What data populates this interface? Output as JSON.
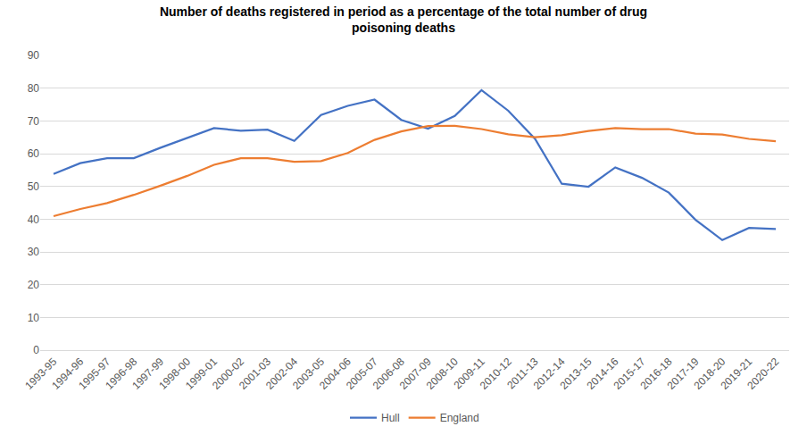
{
  "chart_data": {
    "type": "line",
    "title": "Number of deaths registered in period as a percentage of the total number of drug poisoning deaths",
    "categories": [
      "1993-95",
      "1994-96",
      "1995-97",
      "1996-98",
      "1997-99",
      "1998-00",
      "1999-01",
      "2000-02",
      "2001-03",
      "2002-04",
      "2003-05",
      "2004-06",
      "2005-07",
      "2006-08",
      "2007-09",
      "2008-10",
      "2009-11",
      "2010-12",
      "2011-13",
      "2012-14",
      "2013-15",
      "2014-16",
      "2015-17",
      "2016-18",
      "2017-19",
      "2018-20",
      "2019-21",
      "2020-22"
    ],
    "series": [
      {
        "name": "Hull",
        "color": "#4472c4",
        "values": [
          53.8,
          57.1,
          58.6,
          58.6,
          61.8,
          64.7,
          67.8,
          67.0,
          67.3,
          63.9,
          71.8,
          74.6,
          76.5,
          70.3,
          67.6,
          71.5,
          79.4,
          73.1,
          64.5,
          50.8,
          49.9,
          55.8,
          52.6,
          48.1,
          39.8,
          33.6,
          37.3,
          37.0
        ]
      },
      {
        "name": "England",
        "color": "#ed7d31",
        "values": [
          40.9,
          43.1,
          44.9,
          47.4,
          50.2,
          53.2,
          56.6,
          58.6,
          58.6,
          57.5,
          57.7,
          60.2,
          64.2,
          66.8,
          68.4,
          68.5,
          67.5,
          65.9,
          65.0,
          65.6,
          66.9,
          67.8,
          67.5,
          67.5,
          66.1,
          65.8,
          64.5,
          63.8
        ]
      }
    ],
    "ylim": [
      0,
      90
    ],
    "yticks": [
      0,
      10,
      20,
      30,
      40,
      50,
      60,
      70,
      80,
      90
    ],
    "grid": true,
    "legend": "bottom"
  }
}
